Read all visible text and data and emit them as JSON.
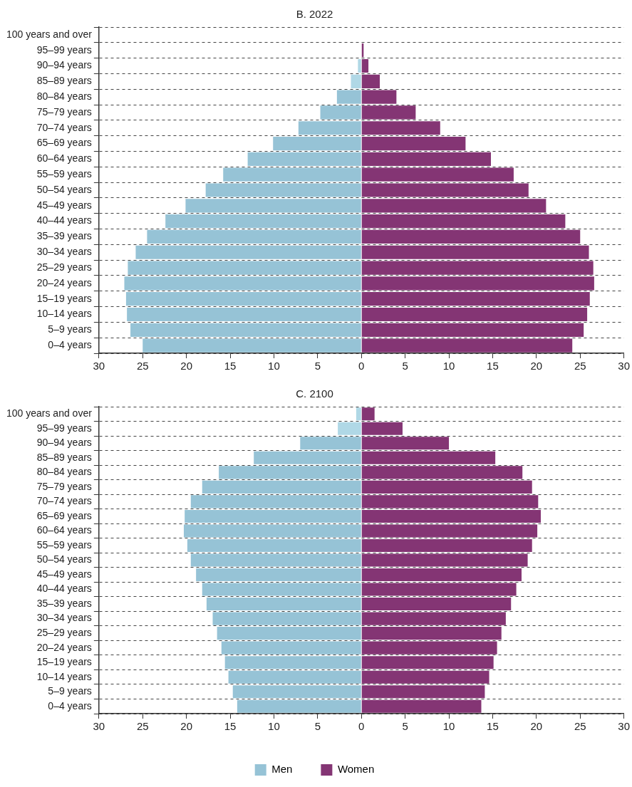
{
  "chart_data": [
    {
      "type": "bar",
      "orientation": "horizontal",
      "stacked": true,
      "title": "B. 2022",
      "categories": [
        "100 years and over",
        "95–99 years",
        "90–94 years",
        "85–89 years",
        "80–84 years",
        "75–79 years",
        "70–74 years",
        "65–69 years",
        "60–64 years",
        "55–59 years",
        "50–54 years",
        "45–49 years",
        "40–44 years",
        "35–39 years",
        "30–34 years",
        "25–29 years",
        "20–24 years",
        "15–19 years",
        "10–14 years",
        "5–9 years",
        "0–4 years"
      ],
      "series": [
        {
          "color": "#96c3d6",
          "colors": [
            "#b0d8e6",
            "#b0d8e6",
            "#b0d8e6",
            "#b0d8e6",
            "#96c3d6",
            "#96c3d6",
            "#96c3d6",
            "#96c3d6",
            "#96c3d6",
            "#96c3d6",
            "#96c3d6",
            "#96c3d6",
            "#96c3d6",
            "#96c3d6",
            "#96c3d6",
            "#96c3d6",
            "#96c3d6",
            "#96c3d6",
            "#96c3d6",
            "#96c3d6",
            "#96c3d6"
          ],
          "values": [
            null,
            null,
            -0.4,
            -1.2,
            -2.8,
            -4.7,
            -7.2,
            -10.1,
            -13.0,
            -15.8,
            -17.8,
            -20.1,
            -22.4,
            -24.5,
            -25.8,
            -26.7,
            -27.1,
            -26.9,
            -26.8,
            -26.4,
            -25.0
          ]
        },
        {
          "color": "#843574",
          "values": [
            null,
            0.25,
            0.8,
            2.1,
            4.0,
            6.2,
            9.0,
            11.9,
            14.8,
            17.4,
            19.1,
            21.1,
            23.3,
            25.0,
            26.0,
            26.5,
            26.6,
            26.1,
            25.8,
            25.4,
            24.1
          ]
        }
      ],
      "xlim": [
        -30,
        30
      ],
      "xticks": [
        {
          "value": -30,
          "label": "30"
        },
        {
          "value": -25,
          "label": "25"
        },
        {
          "value": -20,
          "label": "20"
        },
        {
          "value": -15,
          "label": "15"
        },
        {
          "value": -10,
          "label": "10"
        },
        {
          "value": -5,
          "label": "5"
        },
        0,
        5,
        10,
        15,
        20,
        25,
        30
      ],
      "grid": "y",
      "line_style": "dashed"
    },
    {
      "type": "bar",
      "orientation": "horizontal",
      "stacked": true,
      "title": "C. 2100",
      "categories": [
        "100 years and over",
        "95–99 years",
        "90–94 years",
        "85–89 years",
        "80–84 years",
        "75–79 years",
        "70–74 years",
        "65–69 years",
        "60–64 years",
        "55–59 years",
        "50–54 years",
        "45–49 years",
        "40–44 years",
        "35–39 years",
        "30–34 years",
        "25–29 years",
        "20–24 years",
        "15–19 years",
        "10–14 years",
        "5–9 years",
        "0–4 years"
      ],
      "series": [
        {
          "name": "Men",
          "color": "#96c3d6",
          "colors": [
            "#b0d8e6",
            "#b0d8e6",
            "#96c3d6",
            "#96c3d6",
            "#96c3d6",
            "#96c3d6",
            "#96c3d6",
            "#96c3d6",
            "#96c3d6",
            "#96c3d6",
            "#96c3d6",
            "#96c3d6",
            "#96c3d6",
            "#96c3d6",
            "#96c3d6",
            "#96c3d6",
            "#96c3d6",
            "#96c3d6",
            "#96c3d6",
            "#96c3d6",
            "#96c3d6"
          ],
          "values": [
            -0.6,
            -2.7,
            -7.0,
            -12.3,
            -16.3,
            -18.2,
            -19.5,
            -20.2,
            -20.3,
            -19.9,
            -19.5,
            -18.9,
            -18.2,
            -17.7,
            -17.0,
            -16.5,
            -16.0,
            -15.6,
            -15.2,
            -14.7,
            -14.2
          ]
        },
        {
          "name": "Women",
          "color": "#843574",
          "values": [
            1.5,
            4.7,
            10.0,
            15.3,
            18.4,
            19.5,
            20.2,
            20.5,
            20.1,
            19.5,
            19.0,
            18.3,
            17.7,
            17.1,
            16.5,
            16.0,
            15.5,
            15.1,
            14.6,
            14.1,
            13.7
          ]
        }
      ],
      "xlim": [
        -30,
        30
      ],
      "xticks": [
        {
          "value": -30,
          "label": "30"
        },
        {
          "value": -25,
          "label": "25"
        },
        {
          "value": -20,
          "label": "20"
        },
        {
          "value": -15,
          "label": "15"
        },
        {
          "value": -10,
          "label": "10"
        },
        {
          "value": -5,
          "label": "5"
        },
        0,
        5,
        10,
        15,
        20,
        25,
        30
      ],
      "grid": "y",
      "line_style": "dashed",
      "legend": "bottom"
    }
  ]
}
